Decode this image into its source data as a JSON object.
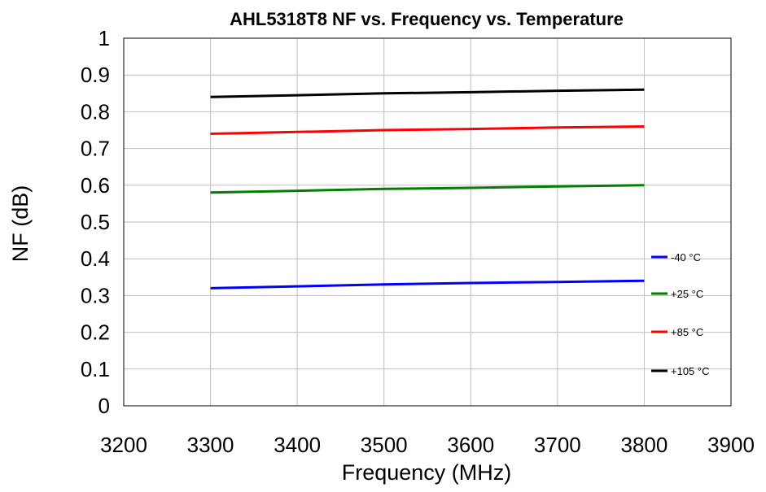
{
  "chart_data": {
    "type": "line",
    "title": "AHL5318T8 NF vs. Frequency vs. Temperature",
    "xlabel": "Frequency (MHz)",
    "ylabel": "NF (dB)",
    "xlim": [
      3200,
      3900
    ],
    "ylim": [
      0,
      1
    ],
    "xticks": [
      3200,
      3300,
      3400,
      3500,
      3600,
      3700,
      3800,
      3900
    ],
    "yticks": [
      "0",
      "0.1",
      "0.2",
      "0.3",
      "0.4",
      "0.5",
      "0.6",
      "0.7",
      "0.8",
      "0.9",
      "1"
    ],
    "grid": true,
    "legend_position": "right",
    "x": [
      3300,
      3400,
      3500,
      3600,
      3700,
      3800
    ],
    "series": [
      {
        "name": "-40 °C",
        "color": "#0000ff",
        "values": [
          0.32,
          0.325,
          0.33,
          0.334,
          0.337,
          0.34
        ]
      },
      {
        "name": "+25 °C",
        "color": "#008000",
        "values": [
          0.58,
          0.585,
          0.59,
          0.593,
          0.597,
          0.6
        ]
      },
      {
        "name": "+85 °C",
        "color": "#ff0000",
        "values": [
          0.74,
          0.745,
          0.75,
          0.753,
          0.757,
          0.76
        ]
      },
      {
        "name": "+105 °C",
        "color": "#000000",
        "values": [
          0.84,
          0.845,
          0.85,
          0.853,
          0.857,
          0.86
        ]
      }
    ]
  }
}
